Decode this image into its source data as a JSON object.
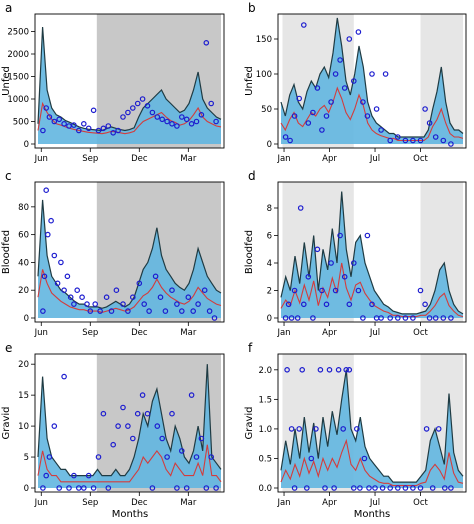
{
  "figure": {
    "xlabel_left": "Months",
    "xlabel_right": "Months",
    "colors": {
      "shade_dark": "#c8c8c8",
      "shade_light": "#e6e6e6",
      "band_fill": "#62b6e0",
      "upper_line": "#1f3b43",
      "mean_line": "#d33c3c",
      "observed_point": "#1c1ccf",
      "axis": "#000000"
    }
  },
  "chart_data": [
    {
      "panel": "a",
      "type": "line",
      "ylabel": "Unfed",
      "xticks": [
        "Jun",
        "Sep",
        "Dec",
        "Mar"
      ],
      "xtick_pos": [
        0.0,
        3.0,
        6.0,
        9.0
      ],
      "xlim": [
        -0.2,
        11.0
      ],
      "ylim": [
        0,
        2800
      ],
      "yticks": [
        0,
        500,
        1000,
        1500,
        2000,
        2500
      ],
      "shaded": [
        [
          3.4,
          11.0
        ]
      ],
      "shade": "dark",
      "series": [
        {
          "values": [
            450,
            2600,
            1200,
            800,
            650,
            600,
            520,
            480,
            430,
            380,
            350,
            330,
            320,
            310,
            300,
            340,
            380,
            350,
            320,
            300,
            320,
            360,
            600,
            800,
            900,
            1000,
            1100,
            1200,
            1000,
            900,
            800,
            700,
            750,
            900,
            1200,
            1600,
            1000,
            800,
            700,
            600,
            550
          ]
        },
        {
          "values": [
            300,
            900,
            700,
            550,
            450,
            420,
            380,
            350,
            320,
            300,
            280,
            260,
            250,
            240,
            230,
            250,
            280,
            270,
            250,
            230,
            250,
            280,
            400,
            500,
            550,
            600,
            650,
            700,
            600,
            520,
            480,
            420,
            450,
            520,
            650,
            800,
            600,
            500,
            450,
            400,
            380
          ]
        }
      ],
      "points": {
        "x": [
          0.1,
          0.3,
          0.5,
          0.8,
          1.1,
          1.4,
          1.7,
          2.0,
          2.3,
          2.6,
          2.9,
          3.2,
          3.5,
          3.8,
          4.1,
          4.4,
          4.7,
          5.0,
          5.3,
          5.6,
          5.9,
          6.2,
          6.5,
          6.8,
          7.1,
          7.4,
          7.7,
          8.0,
          8.3,
          8.6,
          8.9,
          9.2,
          9.5,
          9.8,
          10.1,
          10.4,
          10.7
        ],
        "y": [
          300,
          800,
          600,
          500,
          550,
          450,
          400,
          420,
          300,
          450,
          350,
          750,
          300,
          350,
          400,
          250,
          300,
          600,
          700,
          800,
          900,
          1000,
          850,
          700,
          600,
          550,
          500,
          450,
          400,
          600,
          550,
          450,
          500,
          650,
          2250,
          900,
          500
        ]
      }
    },
    {
      "panel": "b",
      "type": "line",
      "ylabel": "Unfed",
      "xticks": [
        "Jan",
        "Apr",
        "Jul",
        "Oct"
      ],
      "xtick_pos": [
        0.0,
        3.0,
        6.0,
        9.0
      ],
      "xlim": [
        -0.2,
        11.8
      ],
      "ylim": [
        0,
        180
      ],
      "yticks": [
        0,
        50,
        100,
        150
      ],
      "shaded": [
        [
          -0.1,
          4.6
        ],
        [
          9.0,
          11.8
        ]
      ],
      "shade": "light",
      "series": [
        {
          "values": [
            60,
            40,
            70,
            85,
            60,
            50,
            75,
            90,
            80,
            100,
            110,
            95,
            130,
            180,
            140,
            90,
            70,
            100,
            140,
            110,
            60,
            40,
            30,
            25,
            20,
            15,
            15,
            10,
            10,
            10,
            10,
            10,
            10,
            10,
            20,
            50,
            75,
            110,
            60,
            30,
            20,
            20,
            15
          ]
        },
        {
          "values": [
            30,
            20,
            35,
            45,
            30,
            25,
            35,
            45,
            40,
            50,
            55,
            45,
            60,
            80,
            65,
            45,
            35,
            50,
            70,
            55,
            30,
            20,
            15,
            12,
            10,
            8,
            8,
            5,
            5,
            5,
            5,
            5,
            5,
            5,
            10,
            25,
            35,
            50,
            30,
            15,
            10,
            10,
            8
          ]
        }
      ],
      "points": {
        "x": [
          0.1,
          0.4,
          0.7,
          1.0,
          1.3,
          1.6,
          1.9,
          2.2,
          2.5,
          2.8,
          3.1,
          3.4,
          3.7,
          4.0,
          4.3,
          4.6,
          4.9,
          5.2,
          5.5,
          5.8,
          6.1,
          6.4,
          6.7,
          7.0,
          7.5,
          8.0,
          8.5,
          9.0,
          9.3,
          9.6,
          10.0,
          10.5,
          11.0
        ],
        "y": [
          10,
          5,
          40,
          65,
          170,
          30,
          45,
          80,
          20,
          40,
          60,
          100,
          120,
          80,
          150,
          90,
          160,
          60,
          40,
          100,
          50,
          20,
          100,
          5,
          10,
          5,
          5,
          5,
          50,
          30,
          10,
          5,
          0
        ]
      }
    },
    {
      "panel": "c",
      "type": "line",
      "ylabel": "Bloodfed",
      "xticks": [
        "Jun",
        "Sep",
        "Dec",
        "Mar"
      ],
      "xtick_pos": [
        0.0,
        3.0,
        6.0,
        9.0
      ],
      "xlim": [
        -0.2,
        11.0
      ],
      "ylim": [
        0,
        95
      ],
      "yticks": [
        0,
        20,
        40,
        60,
        80
      ],
      "shaded": [
        [
          3.4,
          11.0
        ]
      ],
      "shade": "dark",
      "series": [
        {
          "values": [
            30,
            85,
            45,
            30,
            25,
            20,
            18,
            15,
            12,
            10,
            10,
            8,
            8,
            8,
            7,
            8,
            10,
            12,
            10,
            8,
            10,
            15,
            25,
            35,
            40,
            50,
            65,
            45,
            35,
            30,
            25,
            22,
            20,
            25,
            35,
            50,
            40,
            30,
            25,
            20,
            18
          ]
        },
        {
          "values": [
            15,
            35,
            25,
            18,
            15,
            12,
            10,
            8,
            7,
            6,
            6,
            5,
            5,
            5,
            4,
            5,
            6,
            7,
            6,
            5,
            6,
            8,
            12,
            16,
            18,
            22,
            28,
            22,
            18,
            15,
            13,
            11,
            10,
            12,
            16,
            22,
            18,
            14,
            12,
            10,
            9
          ]
        }
      ],
      "points": {
        "x": [
          0.1,
          0.2,
          0.3,
          0.4,
          0.6,
          0.8,
          1.0,
          1.2,
          1.4,
          1.6,
          1.8,
          2.0,
          2.2,
          2.5,
          2.8,
          3.0,
          3.3,
          3.6,
          4.0,
          4.3,
          4.6,
          5.0,
          5.3,
          5.6,
          6.0,
          6.3,
          6.6,
          7.0,
          7.3,
          7.6,
          8.0,
          8.3,
          8.6,
          9.0,
          9.3,
          9.6,
          10.0,
          10.3,
          10.6
        ],
        "y": [
          5,
          30,
          92,
          60,
          70,
          45,
          25,
          40,
          20,
          30,
          15,
          10,
          20,
          15,
          10,
          5,
          10,
          5,
          15,
          5,
          20,
          10,
          5,
          15,
          25,
          10,
          5,
          30,
          15,
          5,
          20,
          10,
          5,
          15,
          5,
          10,
          20,
          5,
          0
        ]
      }
    },
    {
      "panel": "d",
      "type": "line",
      "ylabel": "Bloodfed",
      "xticks": [
        "Jan",
        "Apr",
        "Jul",
        "Oct"
      ],
      "xtick_pos": [
        0.0,
        3.0,
        6.0,
        9.0
      ],
      "xlim": [
        -0.2,
        11.8
      ],
      "ylim": [
        0,
        9.6
      ],
      "yticks": [
        0,
        2,
        4,
        6,
        8
      ],
      "shaded": [
        [
          -0.1,
          4.6
        ],
        [
          9.0,
          11.8
        ]
      ],
      "shade": "light",
      "series": [
        {
          "values": [
            1.5,
            3.0,
            2.0,
            4.5,
            2.5,
            5.5,
            3.0,
            6.0,
            2.0,
            5.0,
            3.5,
            6.5,
            4.0,
            9.2,
            5.0,
            3.0,
            5.5,
            6.0,
            4.0,
            3.0,
            2.0,
            1.5,
            1.0,
            0.8,
            0.5,
            0.4,
            0.3,
            0.3,
            0.3,
            0.3,
            0.4,
            0.5,
            1.0,
            2.0,
            3.5,
            4.0,
            2.0,
            1.0,
            0.5,
            0.3
          ]
        },
        {
          "values": [
            0.7,
            1.3,
            0.9,
            2.0,
            1.1,
            2.4,
            1.3,
            2.7,
            0.9,
            2.2,
            1.5,
            2.9,
            1.8,
            4.0,
            2.2,
            1.3,
            2.4,
            2.6,
            1.8,
            1.3,
            0.9,
            0.7,
            0.5,
            0.4,
            0.2,
            0.2,
            0.1,
            0.1,
            0.1,
            0.1,
            0.2,
            0.2,
            0.5,
            0.9,
            1.5,
            1.8,
            0.9,
            0.5,
            0.2,
            0.1
          ]
        }
      ],
      "points": {
        "x": [
          0.1,
          0.3,
          0.5,
          0.7,
          0.9,
          1.1,
          1.3,
          1.6,
          1.9,
          2.2,
          2.5,
          2.8,
          3.1,
          3.4,
          3.7,
          4.0,
          4.3,
          4.6,
          4.9,
          5.2,
          5.5,
          5.8,
          6.1,
          6.4,
          7.0,
          7.5,
          8.0,
          8.5,
          9.0,
          9.3,
          9.6,
          10.0,
          10.5,
          11.0
        ],
        "y": [
          0,
          1,
          0,
          2,
          0,
          8,
          1,
          3,
          0,
          5,
          2,
          1,
          4,
          2,
          6,
          3,
          1,
          4,
          2,
          0,
          6,
          1,
          0,
          0,
          0,
          0,
          0,
          0,
          2,
          1,
          0,
          0,
          0,
          0
        ]
      }
    },
    {
      "panel": "e",
      "type": "line",
      "ylabel": "Gravid",
      "xticks": [
        "Jun",
        "Sep",
        "Dec",
        "Mar"
      ],
      "xtick_pos": [
        0.0,
        3.0,
        6.0,
        9.0
      ],
      "xlim": [
        -0.2,
        11.0
      ],
      "ylim": [
        0,
        21
      ],
      "yticks": [
        0,
        5,
        10,
        15,
        20
      ],
      "shaded": [
        [
          3.4,
          11.0
        ]
      ],
      "shade": "dark",
      "series": [
        {
          "values": [
            5,
            18,
            8,
            5,
            4,
            3,
            3,
            2,
            2,
            2,
            2,
            2,
            2,
            3,
            2,
            2,
            2,
            3,
            2,
            2,
            3,
            5,
            8,
            12,
            10,
            14,
            16,
            12,
            8,
            6,
            10,
            8,
            5,
            4,
            6,
            10,
            6,
            20,
            5,
            4,
            3
          ]
        },
        {
          "values": [
            2,
            6,
            3,
            2,
            2,
            1,
            1,
            1,
            1,
            1,
            1,
            1,
            1,
            1,
            1,
            1,
            1,
            1,
            1,
            1,
            1,
            2,
            3,
            5,
            4,
            5,
            6,
            5,
            3,
            2,
            4,
            3,
            2,
            2,
            2,
            4,
            2,
            7,
            2,
            2,
            1
          ]
        }
      ],
      "points": {
        "x": [
          0.1,
          0.3,
          0.5,
          0.8,
          1.1,
          1.4,
          1.7,
          2.0,
          2.3,
          2.6,
          2.9,
          3.2,
          3.5,
          3.8,
          4.1,
          4.4,
          4.7,
          5.0,
          5.3,
          5.6,
          5.9,
          6.2,
          6.5,
          6.8,
          7.1,
          7.4,
          7.7,
          8.0,
          8.3,
          8.6,
          8.9,
          9.2,
          9.5,
          9.8,
          10.1,
          10.4,
          10.7
        ],
        "y": [
          0,
          2,
          5,
          10,
          0,
          18,
          0,
          2,
          0,
          0,
          2,
          0,
          5,
          12,
          0,
          7,
          10,
          13,
          10,
          8,
          12,
          15,
          12,
          0,
          10,
          8,
          5,
          12,
          0,
          6,
          0,
          15,
          5,
          8,
          0,
          5,
          0
        ]
      }
    },
    {
      "panel": "f",
      "type": "line",
      "ylabel": "Gravid",
      "xticks": [
        "Jan",
        "Apr",
        "Jul",
        "Oct"
      ],
      "xtick_pos": [
        0.0,
        3.0,
        6.0,
        9.0
      ],
      "xlim": [
        -0.2,
        11.8
      ],
      "ylim": [
        0,
        2.2
      ],
      "yticks": [
        0.0,
        0.5,
        1.0,
        1.5,
        2.0
      ],
      "shaded": [
        [
          -0.1,
          4.6
        ],
        [
          9.0,
          11.8
        ]
      ],
      "shade": "light",
      "series": [
        {
          "values": [
            0.3,
            0.8,
            0.4,
            1.0,
            0.5,
            1.2,
            0.6,
            1.1,
            0.5,
            1.2,
            0.7,
            1.3,
            0.9,
            1.5,
            2.0,
            1.0,
            0.8,
            1.2,
            0.7,
            0.5,
            0.4,
            0.3,
            0.2,
            0.2,
            0.1,
            0.1,
            0.1,
            0.1,
            0.1,
            0.1,
            0.2,
            0.3,
            0.8,
            1.0,
            0.7,
            0.4,
            1.6,
            0.6,
            0.3,
            0.2
          ]
        },
        {
          "values": [
            0.1,
            0.3,
            0.15,
            0.4,
            0.2,
            0.5,
            0.25,
            0.45,
            0.2,
            0.5,
            0.3,
            0.5,
            0.35,
            0.6,
            0.8,
            0.4,
            0.3,
            0.5,
            0.3,
            0.2,
            0.15,
            0.1,
            0.08,
            0.08,
            0.04,
            0.04,
            0.04,
            0.04,
            0.04,
            0.04,
            0.08,
            0.1,
            0.3,
            0.4,
            0.3,
            0.15,
            0.6,
            0.25,
            0.1,
            0.08
          ]
        }
      ],
      "points": {
        "x": [
          0.2,
          0.5,
          0.7,
          1.0,
          1.2,
          1.5,
          1.8,
          2.1,
          2.4,
          2.7,
          3.0,
          3.3,
          3.6,
          3.9,
          4.1,
          4.3,
          4.6,
          4.8,
          5.0,
          5.3,
          5.6,
          6.0,
          6.5,
          7.0,
          7.5,
          8.0,
          8.5,
          9.0,
          9.4,
          9.8,
          10.2,
          10.6,
          11.0
        ],
        "y": [
          2,
          1,
          0,
          1,
          2,
          0,
          0.5,
          1,
          2,
          0,
          2,
          0,
          2,
          1,
          2,
          2,
          0,
          1,
          0,
          0.5,
          0,
          0,
          0,
          0,
          0,
          0,
          0,
          0,
          1,
          0,
          1,
          0,
          0
        ]
      }
    }
  ]
}
